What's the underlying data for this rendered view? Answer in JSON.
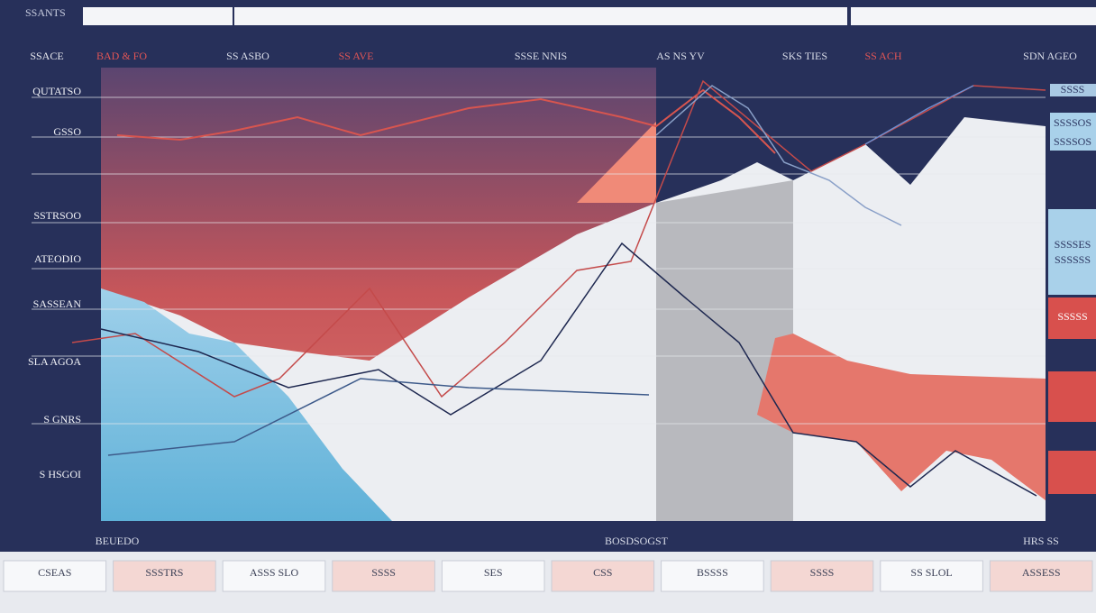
{
  "header": {
    "title": "SSANTS",
    "tabs": [
      "SSACE",
      "BAD & FO",
      "SS ASBO",
      "SS AVE",
      "SSSE NNIS",
      "AS NS YV",
      "SKS TIES",
      "SS ACH",
      "SDN AGEO"
    ]
  },
  "axis": {
    "labels": [
      "QUTATSO",
      "GSSO",
      "SSTRSOO",
      "ATEODIO",
      "SASSEAN",
      "SLA AGOA",
      "S GNRS",
      "S HSGOI"
    ],
    "footer": [
      "BEUEDO",
      "BOSDSOGST",
      "HRS SS"
    ]
  },
  "side_panel": {
    "labels": [
      "SSSS",
      "SSSSOS",
      "SSSSOS",
      "SSSSES",
      "SSSSSS",
      "SSSSS"
    ]
  },
  "bottom_strip": {
    "tabs": [
      "CSEAS",
      "SSSTRS",
      "ASSS SLO",
      "SSSS",
      "SES",
      "CSS",
      "BSSSS",
      "SSSS",
      "SS SLOL",
      "ASSESS"
    ]
  }
}
